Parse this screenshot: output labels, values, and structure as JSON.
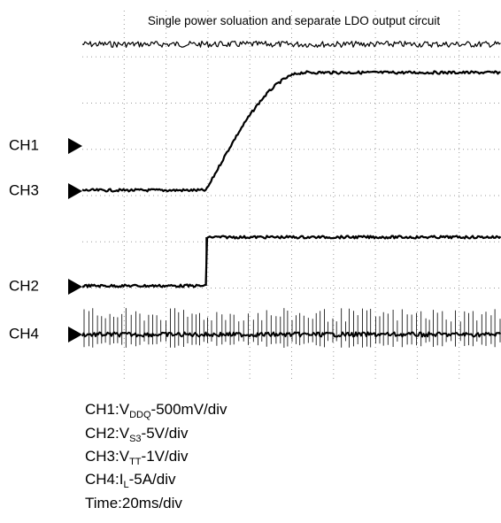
{
  "title": "Single power soluation and separate LDO output circuit",
  "channel_markers": [
    "CH1",
    "CH3",
    "CH2",
    "CH4"
  ],
  "legend": [
    {
      "prefix": "CH1:V",
      "subscript": "DDQ",
      "suffix": "-500mV/div"
    },
    {
      "prefix": "CH2:V",
      "subscript": "S3",
      "suffix": "-5V/div"
    },
    {
      "prefix": "CH3:V",
      "subscript": "TT",
      "suffix": "-1V/div"
    },
    {
      "prefix": "CH4:I",
      "subscript": "L",
      "suffix": "-5A/div"
    },
    {
      "text": "Time:20ms/div"
    }
  ]
}
